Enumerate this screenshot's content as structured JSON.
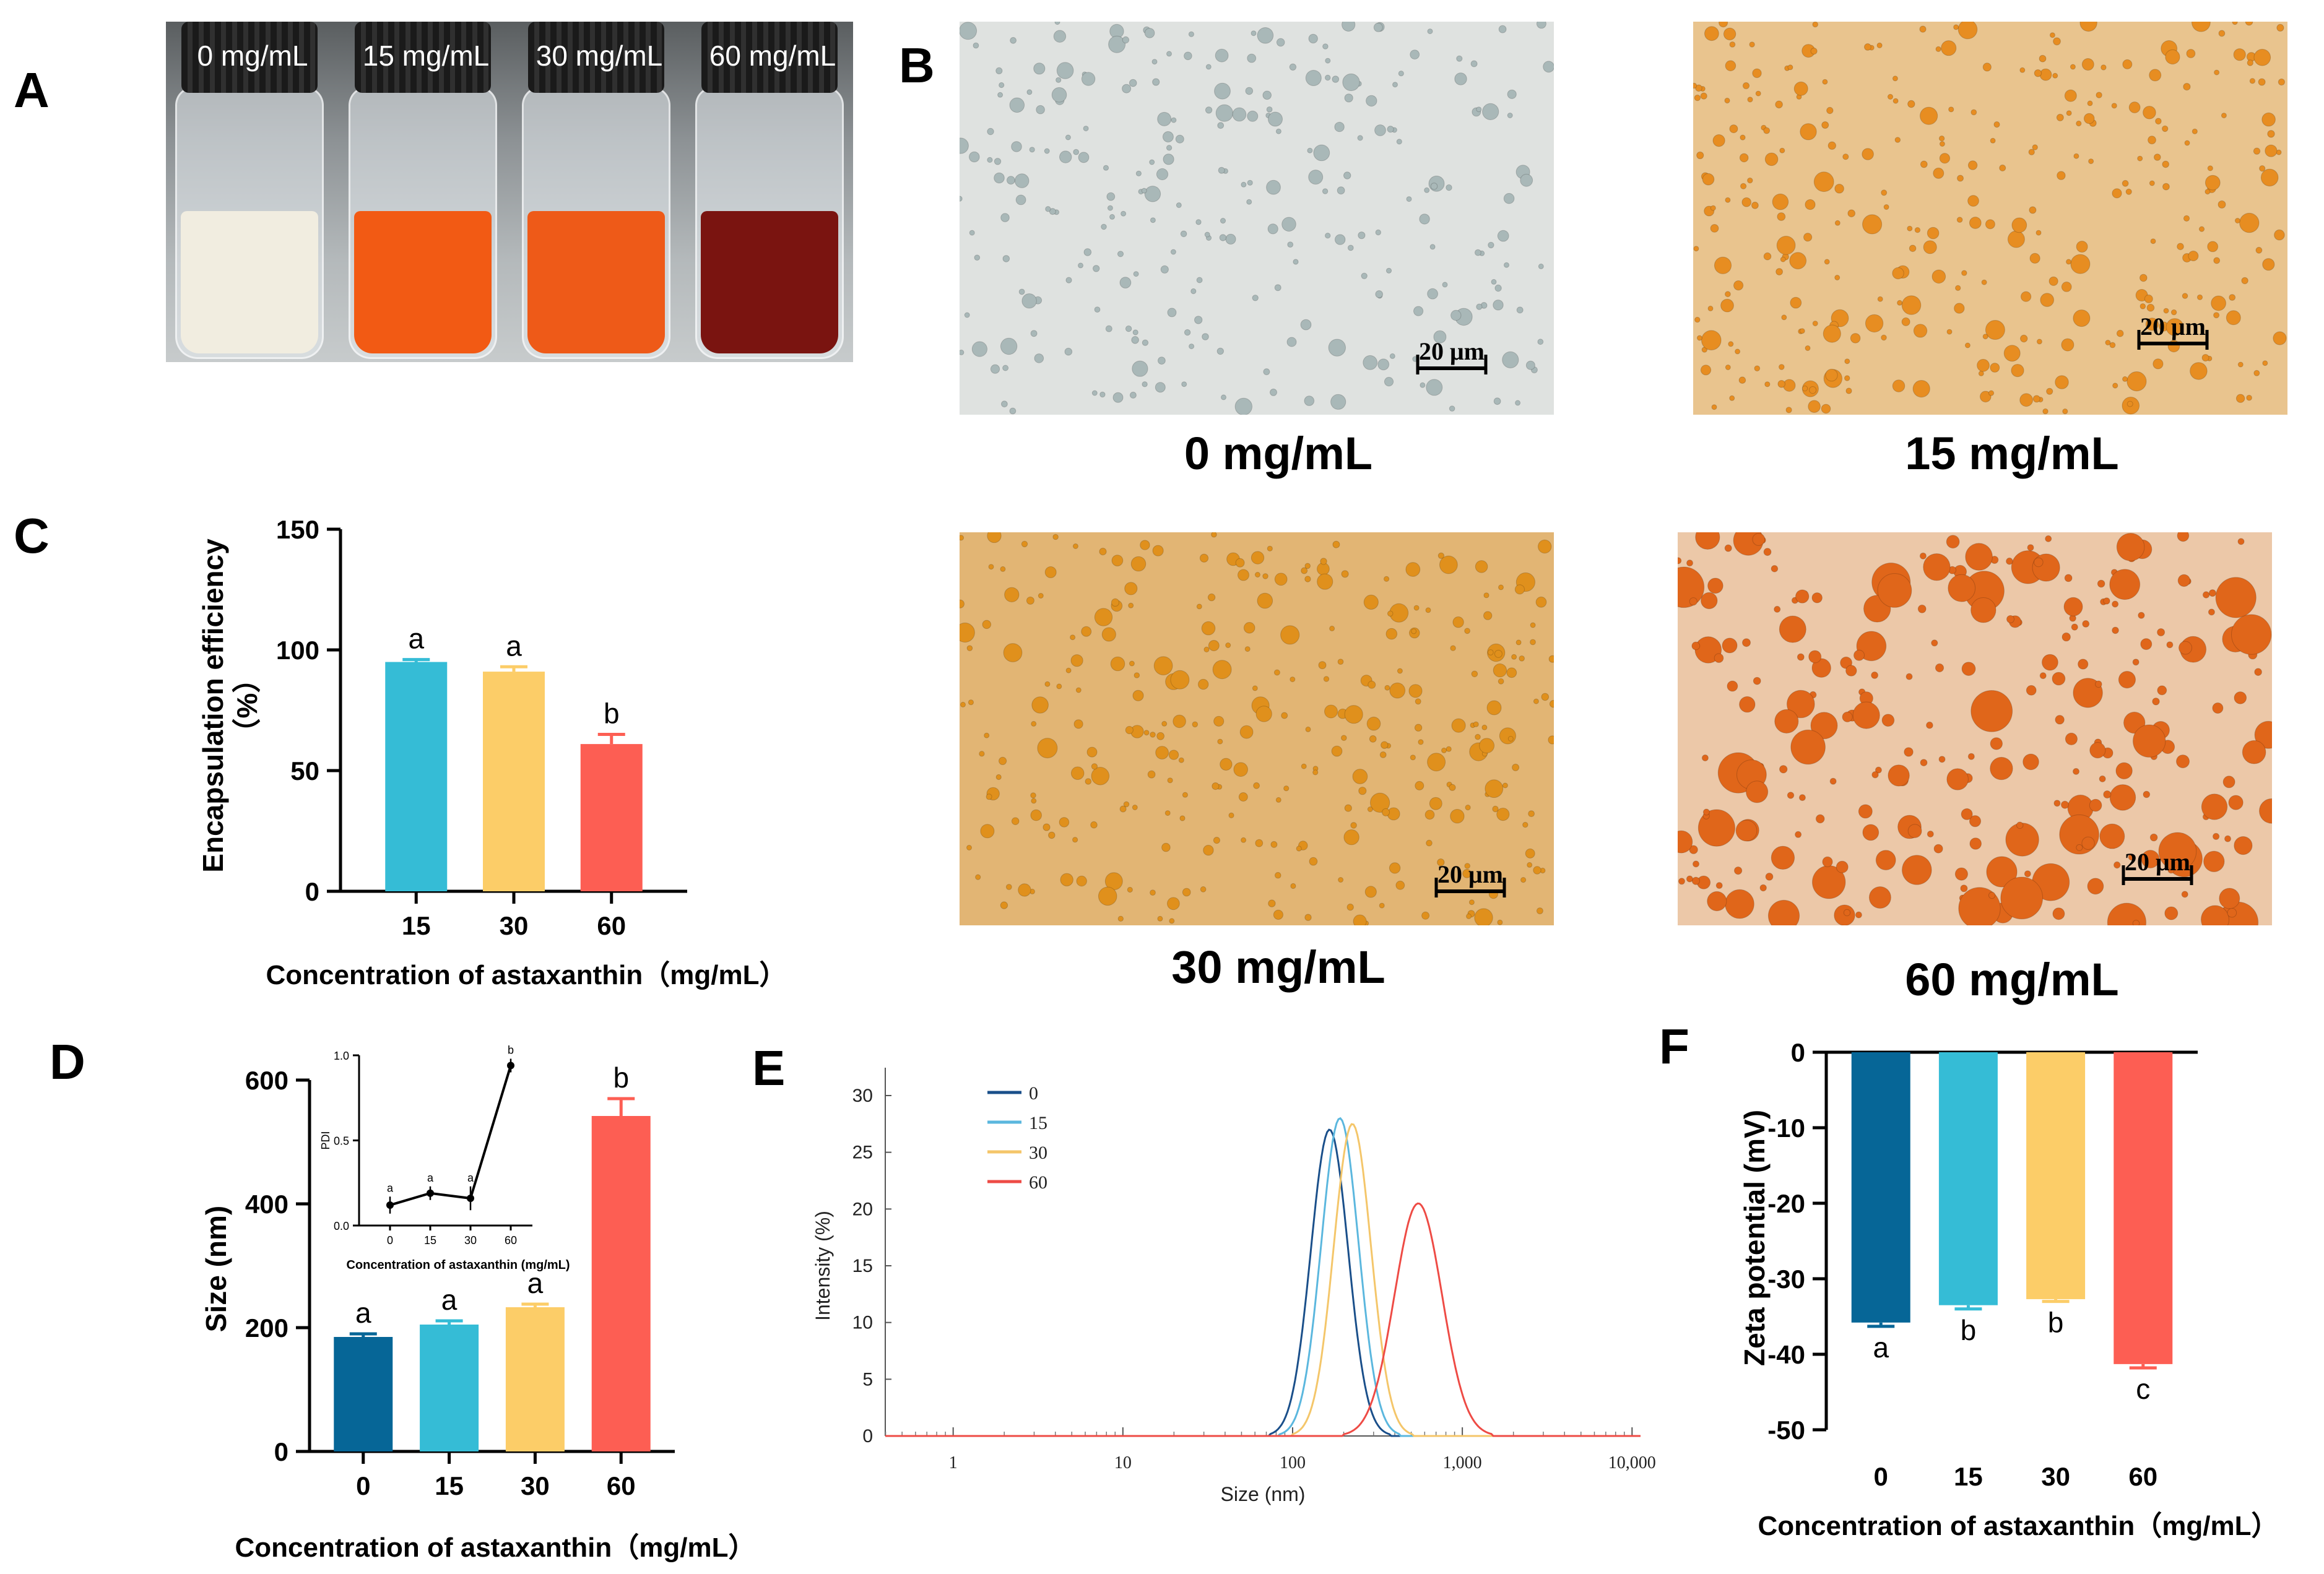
{
  "panels": {
    "A": "A",
    "B": "B",
    "C": "C",
    "D": "D",
    "E": "E",
    "F": "F"
  },
  "photo": {
    "vials": [
      {
        "label": "0 mg/mL",
        "liquid": "#f1ede0",
        "cap": "#222222"
      },
      {
        "label": "15 mg/mL",
        "liquid": "#f25a14",
        "cap": "#222222"
      },
      {
        "label": "30 mg/mL",
        "liquid": "#ee5a18",
        "cap": "#222222"
      },
      {
        "label": "60 mg/mL",
        "liquid": "#7a1410",
        "cap": "#222222"
      }
    ]
  },
  "micrographs": [
    {
      "caption": "0 mg/mL",
      "scale": "20 μm",
      "bg": "#dfe2e0",
      "dot": "#a9b8b8"
    },
    {
      "caption": "15 mg/mL",
      "scale": "20 μm",
      "bg": "#e9c48e",
      "dot": "#e78d21"
    },
    {
      "caption": "30 mg/mL",
      "scale": "20 μm",
      "bg": "#e2b574",
      "dot": "#e0901c"
    },
    {
      "caption": "60 mg/mL",
      "scale": "20 μm",
      "bg": "#ecc8a8",
      "dot": "#e0661a"
    }
  ],
  "chart_data": [
    {
      "id": "C",
      "type": "bar",
      "categories": [
        "15",
        "30",
        "60"
      ],
      "values": [
        95,
        91,
        61
      ],
      "errors": [
        1,
        2,
        4
      ],
      "letters": [
        "a",
        "a",
        "b"
      ],
      "colors": [
        "#35bcd6",
        "#fccd68",
        "#fd5e53"
      ],
      "ylabel": "Encapsulation efficiency\n（%）",
      "xlabel": "Concentration of astaxanthin（mg/mL）",
      "ylim": [
        0,
        150
      ],
      "yticks": [
        0,
        50,
        100,
        150
      ]
    },
    {
      "id": "D",
      "type": "bar",
      "categories": [
        "0",
        "15",
        "30",
        "60"
      ],
      "values": [
        185,
        205,
        233,
        542
      ],
      "errors": [
        5,
        6,
        5,
        28
      ],
      "letters": [
        "a",
        "a",
        "a",
        "b"
      ],
      "colors": [
        "#066697",
        "#35bcd6",
        "#fccd68",
        "#fd5e53"
      ],
      "ylabel": "Size (nm)",
      "xlabel": "Concentration of astaxanthin（mg/mL）",
      "ylim": [
        0,
        600
      ],
      "yticks": [
        0,
        200,
        400,
        600
      ],
      "inset": {
        "type": "line",
        "x": [
          "0",
          "15",
          "30",
          "60"
        ],
        "values": [
          0.12,
          0.19,
          0.16,
          0.94
        ],
        "errors": [
          0.05,
          0.04,
          0.07,
          0.04
        ],
        "letters": [
          "a",
          "a",
          "a",
          "b"
        ],
        "ylabel": "PDI",
        "xlabel": "Concentration of astaxanthin (mg/mL)",
        "ylim": [
          0,
          1
        ],
        "yticks": [
          "0.0",
          "0.5",
          "1.0"
        ]
      }
    },
    {
      "id": "E",
      "type": "line",
      "xscale": "log",
      "xlabel": "Size (nm)",
      "ylabel": "Intensity (%)",
      "xticks": [
        "1",
        "10",
        "100",
        "1,000",
        "10,000"
      ],
      "yticks": [
        "0",
        "5",
        "10",
        "15",
        "20",
        "25",
        "30"
      ],
      "ylim": [
        0,
        30
      ],
      "series": [
        {
          "name": "0",
          "color": "#1a4f8a",
          "peak": 165,
          "height": 27,
          "width": 0.11
        },
        {
          "name": "15",
          "color": "#5bb7de",
          "peak": 190,
          "height": 28,
          "width": 0.11
        },
        {
          "name": "30",
          "color": "#f4c66a",
          "peak": 225,
          "height": 27.5,
          "width": 0.11
        },
        {
          "name": "60",
          "color": "#ee4b45",
          "peak": 550,
          "height": 20.5,
          "width": 0.14
        }
      ]
    },
    {
      "id": "F",
      "type": "bar",
      "categories": [
        "0",
        "15",
        "30",
        "60"
      ],
      "values": [
        -35.8,
        -33.5,
        -32.7,
        -41.3
      ],
      "errors": [
        0.5,
        0.5,
        0.3,
        0.5
      ],
      "letters": [
        "a",
        "b",
        "b",
        "c"
      ],
      "colors": [
        "#066697",
        "#35bcd6",
        "#fccd68",
        "#fd5e53"
      ],
      "ylabel": "Zeta potential (mV)",
      "xlabel": "Concentration of astaxanthin（mg/mL）",
      "ylim": [
        -50,
        0
      ],
      "yticks": [
        "0",
        "-10",
        "-20",
        "-30",
        "-40",
        "-50"
      ]
    }
  ]
}
